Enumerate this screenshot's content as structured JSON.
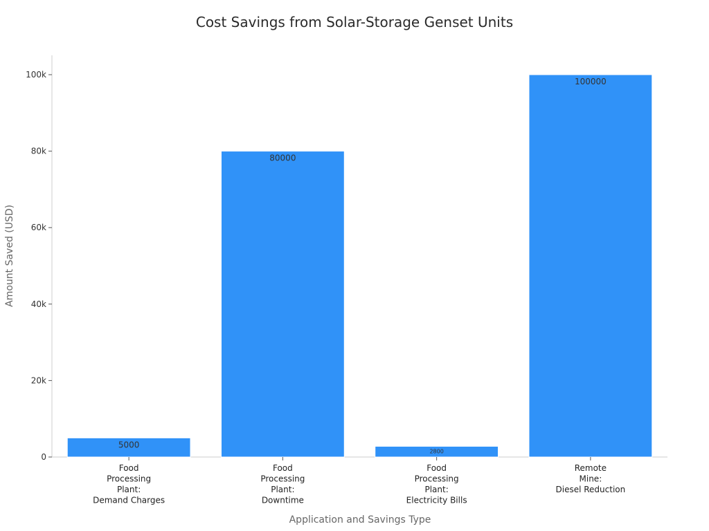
{
  "chart_data": {
    "type": "bar",
    "title": "Cost Savings from Solar-Storage Genset Units",
    "xlabel": "Application and Savings Type",
    "ylabel": "Amount Saved (USD)",
    "categories": [
      [
        "Food",
        "Processing",
        "Plant:",
        "Demand Charges"
      ],
      [
        "Food",
        "Processing",
        "Plant:",
        "Downtime"
      ],
      [
        "Food",
        "Processing",
        "Plant:",
        "Electricity Bills"
      ],
      [
        "Remote",
        "Mine:",
        "Diesel Reduction"
      ]
    ],
    "values": [
      5000,
      80000,
      2800,
      100000
    ],
    "data_labels": [
      "5000",
      "80000",
      "2800",
      "100000"
    ],
    "ylim": [
      0,
      105000
    ],
    "yticks": [
      0,
      20000,
      40000,
      60000,
      80000,
      100000
    ],
    "ytick_labels": [
      "0",
      "20k",
      "40k",
      "60k",
      "80k",
      "100k"
    ],
    "grid": false,
    "bar_color": "#3092f8"
  }
}
